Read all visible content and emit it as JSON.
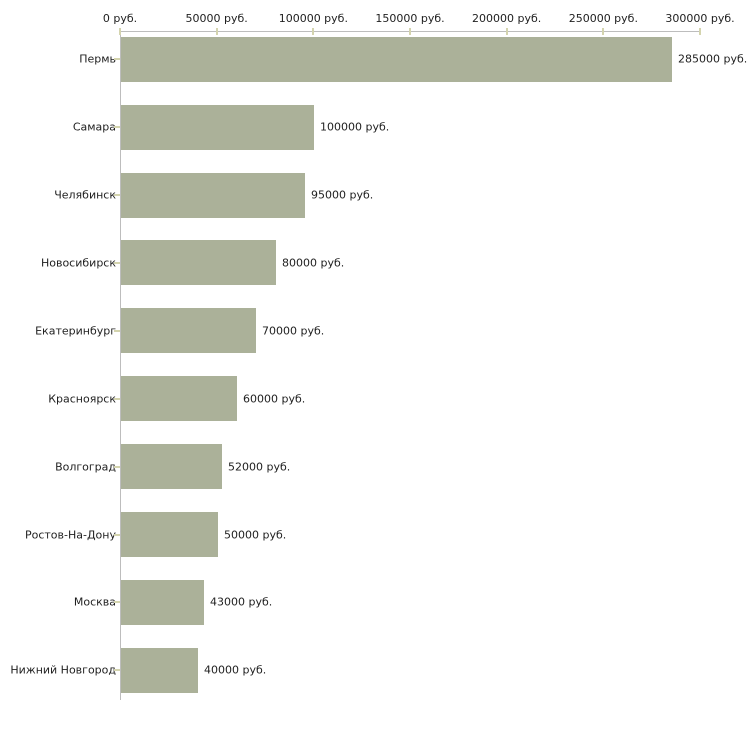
{
  "chart_data": {
    "type": "bar",
    "orientation": "horizontal",
    "categories": [
      "Пермь",
      "Самара",
      "Челябинск",
      "Новосибирск",
      "Екатеринбург",
      "Красноярск",
      "Волгоград",
      "Ростов-На-Дону",
      "Москва",
      "Нижний Новгород"
    ],
    "values": [
      285000,
      100000,
      95000,
      80000,
      70000,
      60000,
      52000,
      50000,
      43000,
      40000
    ],
    "value_labels": [
      "285000 руб.",
      "100000 руб.",
      "95000 руб.",
      "80000 руб.",
      "70000 руб.",
      "60000 руб.",
      "52000 руб.",
      "50000 руб.",
      "43000 руб.",
      "40000 руб."
    ],
    "x_tick_values": [
      0,
      50000,
      100000,
      150000,
      200000,
      250000,
      300000
    ],
    "x_tick_labels": [
      "0 руб.",
      "50000 руб.",
      "100000 руб.",
      "150000 руб.",
      "200000 руб.",
      "250000 руб.",
      "300000 руб."
    ],
    "xlim": [
      0,
      300000
    ],
    "title": "",
    "xlabel": "",
    "ylabel": "",
    "legend": "none",
    "grid": "off",
    "colors": {
      "bar_fill": "#abb199",
      "axis_line": "#bdbdbd",
      "tick_mark": "#d4d4ae",
      "text": "#1f1f1f",
      "background": "#ffffff"
    }
  }
}
